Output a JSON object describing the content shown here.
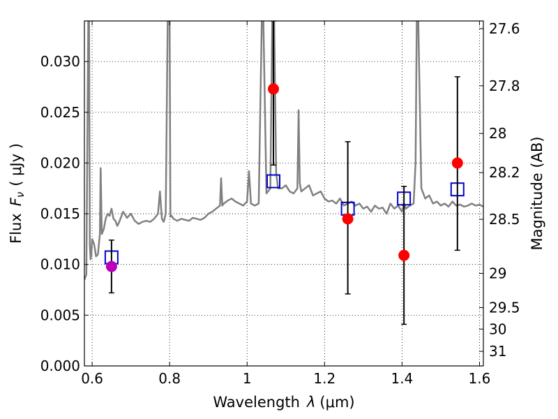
{
  "chart_data": {
    "type": "scatter",
    "title": "",
    "xlabel_text": "Wavelength",
    "xlabel_symbol": "λ",
    "xlabel_unit": "(μm)",
    "ylabel_text": "Flux",
    "ylabel_symbol": "F",
    "ylabel_subscript": "ν",
    "ylabel_unit": "( μJy )",
    "y2label": "Magnitude (AB)",
    "xlim": [
      0.58,
      1.61
    ],
    "ylim": [
      0.0,
      0.034
    ],
    "grid": true,
    "x_ticks": [
      0.6,
      0.8,
      1.0,
      1.2,
      1.4,
      1.6
    ],
    "x_tick_labels": [
      "0.6",
      "0.8",
      "1",
      "1.2",
      "1.4",
      "1.6"
    ],
    "y_ticks": [
      0.0,
      0.005,
      0.01,
      0.015,
      0.02,
      0.025,
      0.03
    ],
    "y_tick_labels": [
      "0.000",
      "0.005",
      "0.010",
      "0.015",
      "0.020",
      "0.025",
      "0.030"
    ],
    "y2_ticks": [
      {
        "flux": 0.03324,
        "label": "27.6"
      },
      {
        "flux": 0.02761,
        "label": "27.8"
      },
      {
        "flux": 0.02291,
        "label": "28"
      },
      {
        "flux": 0.01905,
        "label": "28.2"
      },
      {
        "flux": 0.01445,
        "label": "28.5"
      },
      {
        "flux": 0.00912,
        "label": "29"
      },
      {
        "flux": 0.00575,
        "label": "29.5"
      },
      {
        "flux": 0.00363,
        "label": "30"
      },
      {
        "flux": 0.00144,
        "label": "31"
      }
    ],
    "series": [
      {
        "kind": "line",
        "color": "#808080",
        "x": [
          0.58,
          0.585,
          0.59,
          0.592,
          0.594,
          0.596,
          0.598,
          0.6,
          0.605,
          0.61,
          0.615,
          0.62,
          0.622,
          0.625,
          0.63,
          0.635,
          0.64,
          0.645,
          0.65,
          0.655,
          0.66,
          0.665,
          0.67,
          0.68,
          0.69,
          0.7,
          0.71,
          0.72,
          0.73,
          0.74,
          0.75,
          0.76,
          0.77,
          0.775,
          0.78,
          0.785,
          0.79,
          0.795,
          0.798,
          0.8,
          0.802,
          0.805,
          0.81,
          0.82,
          0.83,
          0.84,
          0.85,
          0.86,
          0.87,
          0.88,
          0.89,
          0.9,
          0.91,
          0.92,
          0.93,
          0.933,
          0.936,
          0.94,
          0.95,
          0.96,
          0.97,
          0.98,
          0.99,
          1.0,
          1.005,
          1.01,
          1.02,
          1.03,
          1.038,
          1.042,
          1.05,
          1.06,
          1.065,
          1.07,
          1.075,
          1.08,
          1.09,
          1.1,
          1.11,
          1.12,
          1.13,
          1.133,
          1.136,
          1.14,
          1.15,
          1.16,
          1.17,
          1.18,
          1.19,
          1.2,
          1.21,
          1.22,
          1.23,
          1.24,
          1.25,
          1.26,
          1.27,
          1.28,
          1.29,
          1.3,
          1.31,
          1.32,
          1.33,
          1.34,
          1.35,
          1.36,
          1.37,
          1.38,
          1.39,
          1.4,
          1.405,
          1.41,
          1.42,
          1.43,
          1.435,
          1.438,
          1.44,
          1.442,
          1.45,
          1.46,
          1.47,
          1.48,
          1.49,
          1.5,
          1.51,
          1.52,
          1.53,
          1.54,
          1.55,
          1.56,
          1.57,
          1.58,
          1.59,
          1.6,
          1.61
        ],
        "y": [
          0.0085,
          0.009,
          0.034,
          0.034,
          0.012,
          0.0105,
          0.011,
          0.0125,
          0.012,
          0.0108,
          0.011,
          0.013,
          0.0195,
          0.013,
          0.0135,
          0.0145,
          0.015,
          0.0148,
          0.0155,
          0.0145,
          0.0143,
          0.0138,
          0.0142,
          0.0152,
          0.0146,
          0.015,
          0.0143,
          0.014,
          0.0142,
          0.0143,
          0.0142,
          0.0145,
          0.015,
          0.0172,
          0.0145,
          0.0142,
          0.015,
          0.034,
          0.034,
          0.034,
          0.0147,
          0.0148,
          0.0145,
          0.0143,
          0.0145,
          0.0144,
          0.0143,
          0.0146,
          0.0145,
          0.0144,
          0.0146,
          0.015,
          0.0152,
          0.0155,
          0.0158,
          0.0185,
          0.0158,
          0.016,
          0.0163,
          0.0165,
          0.0162,
          0.016,
          0.0158,
          0.0162,
          0.0192,
          0.016,
          0.0158,
          0.016,
          0.034,
          0.034,
          0.017,
          0.0175,
          0.034,
          0.034,
          0.019,
          0.0175,
          0.0175,
          0.0178,
          0.0172,
          0.017,
          0.0175,
          0.0252,
          0.018,
          0.0172,
          0.0175,
          0.0178,
          0.0168,
          0.017,
          0.0172,
          0.0165,
          0.0162,
          0.0163,
          0.016,
          0.0165,
          0.0158,
          0.016,
          0.0162,
          0.0158,
          0.016,
          0.0155,
          0.0157,
          0.0152,
          0.0158,
          0.0155,
          0.0156,
          0.015,
          0.016,
          0.0155,
          0.0158,
          0.0152,
          0.016,
          0.0155,
          0.0158,
          0.016,
          0.02,
          0.034,
          0.034,
          0.034,
          0.0175,
          0.0165,
          0.0168,
          0.016,
          0.0162,
          0.0158,
          0.016,
          0.0157,
          0.0162,
          0.0158,
          0.0159,
          0.0157,
          0.0158,
          0.016,
          0.0158,
          0.0159,
          0.0157
        ]
      },
      {
        "kind": "points",
        "marker": "circle",
        "color": "#ff0000",
        "x": [
          1.068,
          1.26,
          1.405,
          1.543
        ],
        "y": [
          0.0273,
          0.0145,
          0.0109,
          0.02
        ]
      },
      {
        "kind": "points",
        "marker": "circle",
        "color": "#bb00bb",
        "x": [
          0.65
        ],
        "y": [
          0.0098
        ]
      },
      {
        "kind": "points",
        "marker": "square-open",
        "color": "#0000cc",
        "x": [
          0.65,
          1.068,
          1.26,
          1.405,
          1.543
        ],
        "y": [
          0.0107,
          0.0182,
          0.0155,
          0.0165,
          0.0174
        ]
      },
      {
        "kind": "errorbars",
        "color": "#000000",
        "x": [
          0.65,
          1.068,
          1.26,
          1.405,
          1.543
        ],
        "ylow": [
          0.0072,
          0.0198,
          0.0071,
          0.0041,
          0.0114
        ],
        "yhigh": [
          0.0124,
          0.034,
          0.0221,
          0.0177,
          0.0285
        ]
      }
    ]
  }
}
